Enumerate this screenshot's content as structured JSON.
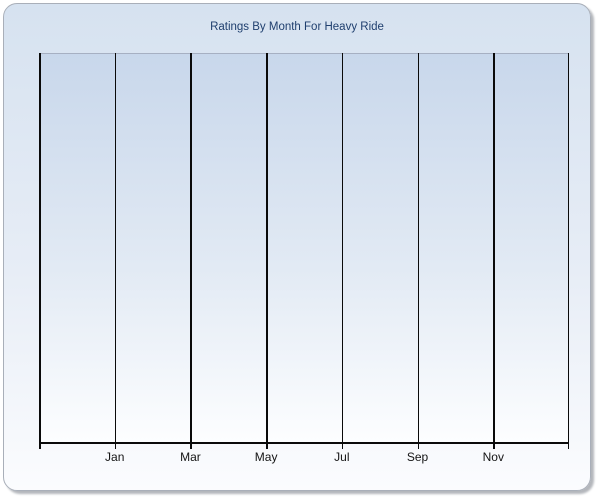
{
  "window": {
    "background_color": "#ffffff"
  },
  "panel": {
    "border_color": "#a9afb9",
    "background_gradient_top": "#d6e2f0",
    "background_gradient_bottom": "#fbfcfe",
    "shadow_color": "#b4b7bc"
  },
  "chart": {
    "title": "Ratings By Month For Heavy Ride",
    "title_color": "#1f3f6e",
    "plot": {
      "background_gradient_top": "#c8d7eb",
      "background_gradient_bottom": "#fdfeff",
      "top_border_color": "#a6b0c2",
      "gridline_color": "#0a0a0a",
      "axis_color": "#0a0a0a",
      "tick_label_color": "#141414"
    }
  },
  "chart_data": {
    "type": "bar",
    "title": "Ratings By Month For Heavy Ride",
    "x_tick_labels": [
      "Jan",
      "Mar",
      "May",
      "Jul",
      "Sep",
      "Nov"
    ],
    "categories": [],
    "series": [],
    "y_axis": {
      "tick_labels": [],
      "horizontal_gridlines": false
    },
    "legend_position": "none",
    "layout_hints": {
      "plot_intervals": 7,
      "vertical_gridlines": true,
      "data_points_visible": 0
    }
  }
}
